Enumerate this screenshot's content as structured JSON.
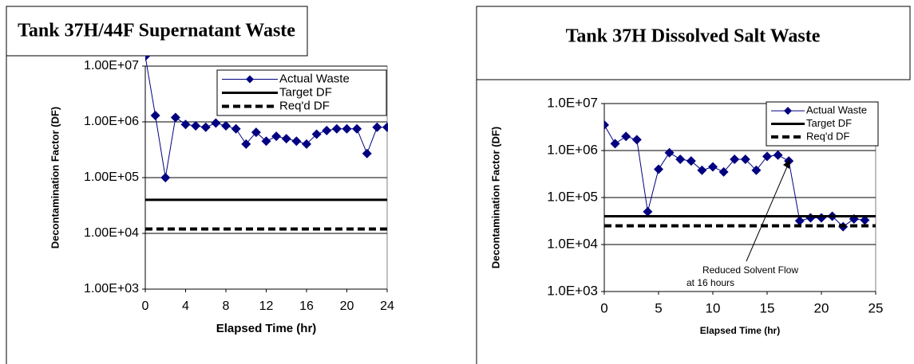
{
  "chart_data": [
    {
      "type": "line",
      "title": "Tank 37H/44F Supernatant Waste",
      "x_label": "Elapsed Time (hr)",
      "y_label": "Decontamination Factor (DF)",
      "log_y": true,
      "grid": true,
      "xlim": [
        0,
        24
      ],
      "xticks": [
        0,
        4,
        8,
        12,
        16,
        20,
        24
      ],
      "ylim": [
        1000,
        10000000
      ],
      "yticks": [
        {
          "value": 1000,
          "label": "1.00E+03"
        },
        {
          "value": 10000,
          "label": "1.00E+04"
        },
        {
          "value": 100000,
          "label": "1.00E+05"
        },
        {
          "value": 1000000,
          "label": "1.00E+06"
        },
        {
          "value": 10000000,
          "label": "1.00E+07"
        }
      ],
      "series": [
        {
          "name": "Actual Waste",
          "color": "#000080",
          "marker": "diamond",
          "style": "solid",
          "x": [
            0,
            1,
            2,
            3,
            4,
            5,
            6,
            7,
            8,
            9,
            10,
            11,
            12,
            13,
            14,
            15,
            16,
            17,
            18,
            19,
            20,
            21,
            22,
            23,
            24
          ],
          "values": [
            15000000,
            1300000,
            100000,
            1200000,
            900000,
            850000,
            800000,
            950000,
            850000,
            750000,
            400000,
            650000,
            450000,
            550000,
            500000,
            450000,
            400000,
            600000,
            700000,
            750000,
            750000,
            750000,
            270000,
            800000,
            800000
          ]
        },
        {
          "name": "Target DF",
          "color": "#000000",
          "style": "solid",
          "x": [
            0,
            24
          ],
          "values": [
            40000,
            40000
          ]
        },
        {
          "name": "Req'd DF",
          "color": "#000000",
          "style": "dashed",
          "x": [
            0,
            24
          ],
          "values": [
            12000,
            12000
          ]
        }
      ]
    },
    {
      "type": "line",
      "title": "Tank 37H Dissolved Salt Waste",
      "x_label": "Elapsed Time (hr)",
      "y_label": "Decontamination Factor (DF)",
      "log_y": true,
      "grid": true,
      "xlim": [
        0,
        25
      ],
      "xticks": [
        0,
        5,
        10,
        15,
        20,
        25
      ],
      "ylim": [
        1000,
        10000000
      ],
      "yticks": [
        {
          "value": 1000,
          "label": "1.0E+03"
        },
        {
          "value": 10000,
          "label": "1.0E+04"
        },
        {
          "value": 100000,
          "label": "1.0E+05"
        },
        {
          "value": 1000000,
          "label": "1.0E+06"
        },
        {
          "value": 10000000,
          "label": "1.0E+07"
        }
      ],
      "annotation": [
        "Reduced Solvent Flow",
        "at 16 hours"
      ],
      "series": [
        {
          "name": "Actual Waste",
          "color": "#000080",
          "marker": "diamond",
          "style": "solid",
          "x": [
            0,
            1,
            2,
            3,
            4,
            5,
            6,
            7,
            8,
            9,
            10,
            11,
            12,
            13,
            14,
            15,
            16,
            17,
            18,
            19,
            20,
            21,
            22,
            23,
            24
          ],
          "values": [
            3500000,
            1400000,
            2000000,
            1700000,
            50000,
            400000,
            900000,
            650000,
            600000,
            380000,
            450000,
            350000,
            650000,
            650000,
            380000,
            750000,
            800000,
            600000,
            32000,
            37000,
            37000,
            40000,
            24000,
            35000,
            33000
          ]
        },
        {
          "name": "Target DF",
          "color": "#000000",
          "style": "solid",
          "x": [
            0,
            25
          ],
          "values": [
            40000,
            40000
          ]
        },
        {
          "name": "Req'd DF",
          "color": "#000000",
          "style": "dashed",
          "x": [
            0,
            25
          ],
          "values": [
            25000,
            25000
          ]
        }
      ]
    }
  ]
}
